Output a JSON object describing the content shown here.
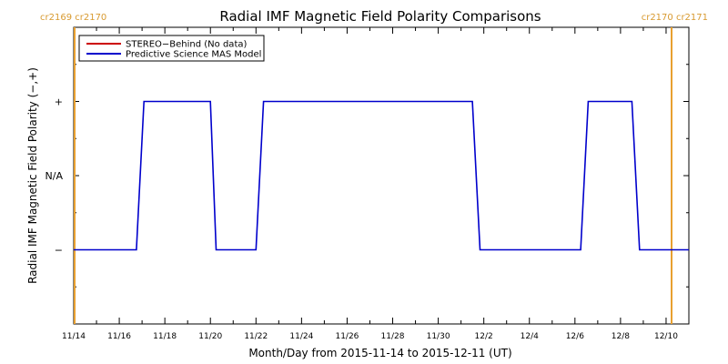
{
  "chart_data": {
    "type": "line",
    "title": "Radial IMF Magnetic Field Polarity Comparisons",
    "xlabel": "Month/Day from 2015-11-14 to 2015-12-11 (UT)",
    "ylabel": "Radial IMF Magnetic Field Polarity (−,+)",
    "x_range": [
      "2015-11-14",
      "2015-12-11"
    ],
    "x_ticks": [
      "11/14",
      "11/16",
      "11/18",
      "11/20",
      "11/22",
      "11/24",
      "11/26",
      "11/28",
      "11/30",
      "12/2",
      "12/4",
      "12/6",
      "12/8",
      "12/10"
    ],
    "y_ticks": [
      "+",
      "N/A",
      "−"
    ],
    "ylim": [
      -2,
      2
    ],
    "legend_position": "top-left",
    "legend": [
      {
        "name": "STEREO−Behind (No data)",
        "color": "#cc0000"
      },
      {
        "name": "Predictive Science MAS Model",
        "color": "#0000cc"
      }
    ],
    "series": [
      {
        "name": "Predictive Science MAS Model",
        "color": "#0000cc",
        "points": [
          [
            "2015-11-14T00:00",
            -1
          ],
          [
            "2015-11-16T18:00",
            -1
          ],
          [
            "2015-11-17T02:00",
            1
          ],
          [
            "2015-11-20T00:00",
            1
          ],
          [
            "2015-11-20T06:00",
            -1
          ],
          [
            "2015-11-22T00:00",
            -1
          ],
          [
            "2015-11-22T08:00",
            1
          ],
          [
            "2015-12-01T12:00",
            1
          ],
          [
            "2015-12-01T20:00",
            -1
          ],
          [
            "2015-12-06T06:00",
            -1
          ],
          [
            "2015-12-06T14:00",
            1
          ],
          [
            "2015-12-08T12:00",
            1
          ],
          [
            "2015-12-08T20:00",
            -1
          ],
          [
            "2015-12-11T00:00",
            -1
          ]
        ]
      }
    ],
    "carrington_markers": [
      {
        "date": "2015-11-14T00:00",
        "label": "cr2169 cr2170",
        "color": "#e8a030"
      },
      {
        "date": "2015-12-11T00:00",
        "label": "cr2170 cr2171",
        "color": "#e8a030"
      }
    ]
  }
}
